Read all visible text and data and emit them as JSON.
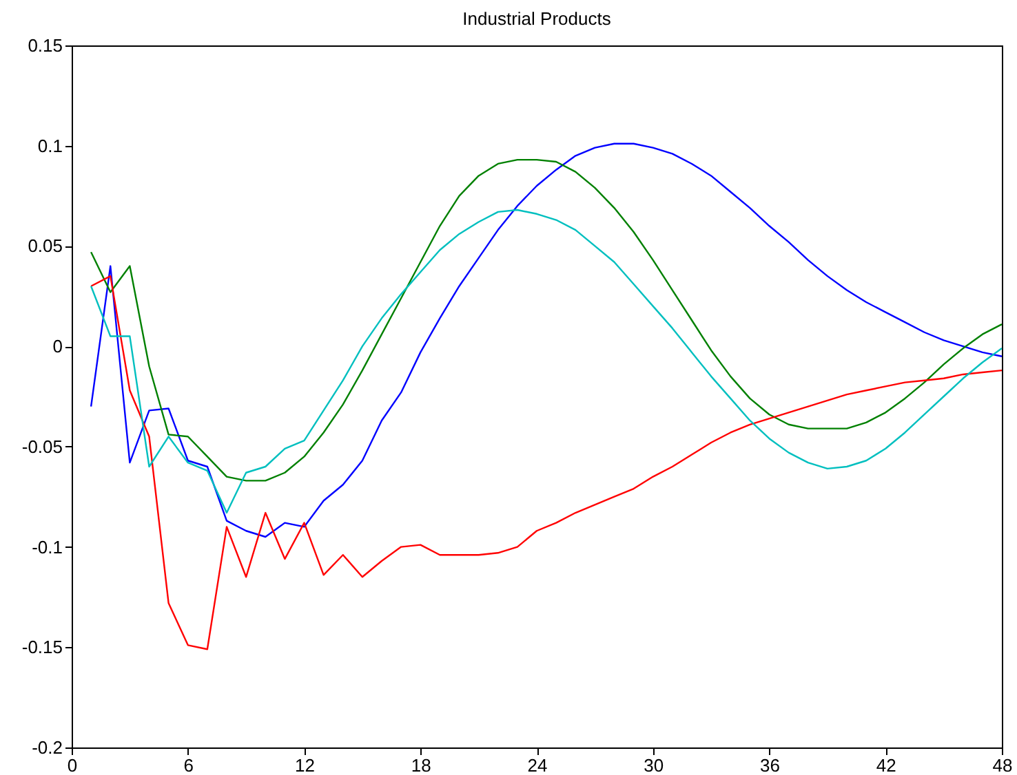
{
  "chart_data": {
    "type": "line",
    "title": "Industrial Products",
    "x": [
      1,
      2,
      3,
      4,
      5,
      6,
      7,
      8,
      9,
      10,
      11,
      12,
      13,
      14,
      15,
      16,
      17,
      18,
      19,
      20,
      21,
      22,
      23,
      24,
      25,
      26,
      27,
      28,
      29,
      30,
      31,
      32,
      33,
      34,
      35,
      36,
      37,
      38,
      39,
      40,
      41,
      42,
      43,
      44,
      45,
      46,
      47,
      48
    ],
    "xlim": [
      0,
      48
    ],
    "xticks": [
      0,
      6,
      12,
      18,
      24,
      30,
      36,
      42,
      48
    ],
    "ylim": [
      -0.2,
      0.15
    ],
    "yticks": [
      -0.2,
      -0.15,
      -0.1,
      -0.05,
      0,
      0.05,
      0.1,
      0.15
    ],
    "grid": false,
    "marker": "none",
    "line_style": "solid",
    "series": [
      {
        "color": "#0000ff",
        "values": [
          -0.03,
          0.04,
          -0.058,
          -0.032,
          -0.031,
          -0.057,
          -0.06,
          -0.087,
          -0.092,
          -0.095,
          -0.088,
          -0.09,
          -0.077,
          -0.069,
          -0.057,
          -0.037,
          -0.023,
          -0.003,
          0.014,
          0.03,
          0.044,
          0.058,
          0.07,
          0.08,
          0.088,
          0.095,
          0.099,
          0.101,
          0.101,
          0.099,
          0.096,
          0.091,
          0.085,
          0.077,
          0.069,
          0.06,
          0.052,
          0.043,
          0.035,
          0.028,
          0.022,
          0.017,
          0.012,
          0.007,
          0.003,
          0,
          -0.003,
          -0.005
        ]
      },
      {
        "color": "#008000",
        "values": [
          0.047,
          0.027,
          0.04,
          -0.01,
          -0.044,
          -0.045,
          -0.055,
          -0.065,
          -0.067,
          -0.067,
          -0.063,
          -0.055,
          -0.043,
          -0.029,
          -0.012,
          0.006,
          0.024,
          0.042,
          0.06,
          0.075,
          0.085,
          0.091,
          0.093,
          0.093,
          0.092,
          0.087,
          0.079,
          0.069,
          0.057,
          0.043,
          0.028,
          0.013,
          -0.002,
          -0.015,
          -0.026,
          -0.034,
          -0.039,
          -0.041,
          -0.041,
          -0.041,
          -0.038,
          -0.033,
          -0.026,
          -0.018,
          -0.009,
          -0.001,
          0.006,
          0.011
        ]
      },
      {
        "color": "#ff0000",
        "values": [
          0.03,
          0.035,
          -0.022,
          -0.045,
          -0.128,
          -0.149,
          -0.151,
          -0.09,
          -0.115,
          -0.083,
          -0.106,
          -0.088,
          -0.114,
          -0.104,
          -0.115,
          -0.107,
          -0.1,
          -0.099,
          -0.104,
          -0.104,
          -0.104,
          -0.103,
          -0.1,
          -0.092,
          -0.088,
          -0.083,
          -0.079,
          -0.075,
          -0.071,
          -0.065,
          -0.06,
          -0.054,
          -0.048,
          -0.043,
          -0.039,
          -0.036,
          -0.033,
          -0.03,
          -0.027,
          -0.024,
          -0.022,
          -0.02,
          -0.018,
          -0.017,
          -0.016,
          -0.014,
          -0.013,
          -0.012
        ]
      },
      {
        "color": "#00bfbf",
        "values": [
          0.03,
          0.005,
          0.005,
          -0.06,
          -0.045,
          -0.058,
          -0.062,
          -0.083,
          -0.063,
          -0.06,
          -0.051,
          -0.047,
          -0.032,
          -0.017,
          0,
          0.014,
          0.026,
          0.037,
          0.048,
          0.056,
          0.062,
          0.067,
          0.068,
          0.066,
          0.063,
          0.058,
          0.05,
          0.042,
          0.031,
          0.02,
          0.009,
          -0.003,
          -0.015,
          -0.026,
          -0.037,
          -0.046,
          -0.053,
          -0.058,
          -0.061,
          -0.06,
          -0.057,
          -0.051,
          -0.043,
          -0.034,
          -0.025,
          -0.016,
          -0.008,
          -0.001
        ]
      }
    ]
  }
}
